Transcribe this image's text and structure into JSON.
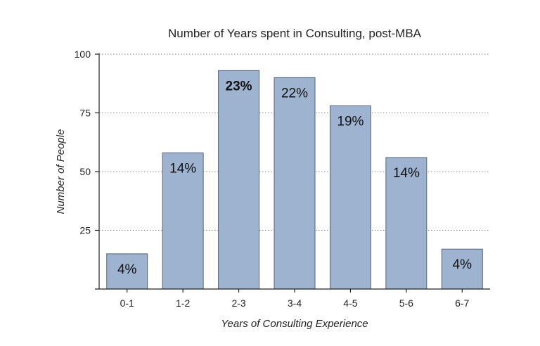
{
  "chart_data": {
    "type": "bar",
    "title": "Number of Years spent in Consulting, post-MBA",
    "xlabel": "Years of Consulting Experience",
    "ylabel": "Number of People",
    "categories": [
      "0-1",
      "1-2",
      "2-3",
      "3-4",
      "4-5",
      "5-6",
      "6-7"
    ],
    "values": [
      15,
      58,
      93,
      90,
      78,
      56,
      17
    ],
    "data_labels": [
      "4%",
      "14%",
      "23%",
      "22%",
      "19%",
      "14%",
      "4%"
    ],
    "highlight_index": 2,
    "ylim": [
      0,
      100
    ],
    "yticks": [
      25,
      50,
      75,
      100
    ],
    "grid": true,
    "legend": "none",
    "bar_color": "#9db3cf",
    "bar_edge_color": "#55657a"
  }
}
